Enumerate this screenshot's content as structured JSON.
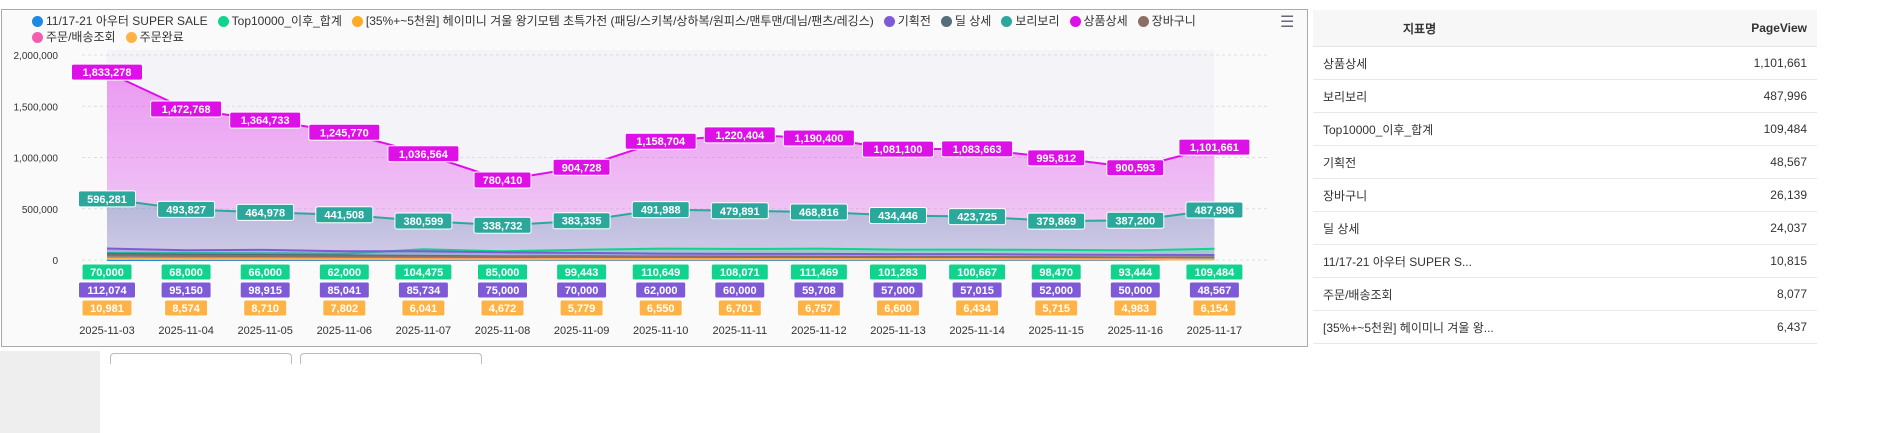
{
  "menu_icon": "hamburger-icon",
  "table": {
    "headers": [
      "지표명",
      "PageView"
    ],
    "rows": [
      [
        "상품상세",
        "1,101,661"
      ],
      [
        "보리보리",
        "487,996"
      ],
      [
        "Top10000_이후_합계",
        "109,484"
      ],
      [
        "기획전",
        "48,567"
      ],
      [
        "장바구니",
        "26,139"
      ],
      [
        "딜 상세",
        "24,037"
      ],
      [
        "11/17-21 아우터 SUPER S...",
        "10,815"
      ],
      [
        "주문/배송조회",
        "8,077"
      ],
      [
        "[35%+~5천원] 헤이미니 겨울 왕...",
        "6,437"
      ],
      [
        "주문완료",
        "6,154"
      ]
    ]
  },
  "chart_data": {
    "type": "area",
    "x": [
      "2025-11-03",
      "2025-11-04",
      "2025-11-05",
      "2025-11-06",
      "2025-11-07",
      "2025-11-08",
      "2025-11-09",
      "2025-11-10",
      "2025-11-11",
      "2025-11-12",
      "2025-11-13",
      "2025-11-14",
      "2025-11-15",
      "2025-11-16",
      "2025-11-17"
    ],
    "yticks": [
      "0",
      "500,000",
      "1,000,000",
      "1,500,000",
      "2,000,000"
    ],
    "ylim": [
      0,
      2000000
    ],
    "series": [
      {
        "name": "11/17-21 아우터 SUPER SALE",
        "color": "#1e88e5",
        "labels": false,
        "values": [
          0,
          0,
          0,
          0,
          0,
          0,
          0,
          0,
          0,
          0,
          0,
          0,
          0,
          0,
          10815
        ]
      },
      {
        "name": "Top10000_이후_합계",
        "color": "#12d38e",
        "labels": true,
        "values": [
          70000,
          68000,
          66000,
          62000,
          104475,
          85000,
          99443,
          110649,
          108071,
          111469,
          101283,
          100667,
          98470,
          93444,
          109484
        ]
      },
      {
        "name": "[35%+~5천원] 헤이미니 겨울 왕기모템 초특가전 (패딩/스키복/상하복/원피스/맨투맨/데님/팬츠/레깅스)",
        "color": "#ffab26",
        "labels": false,
        "values": [
          8000,
          7800,
          7600,
          7200,
          7000,
          6500,
          6800,
          7000,
          7100,
          7000,
          6900,
          6800,
          6600,
          6300,
          6437
        ]
      },
      {
        "name": "기획전",
        "color": "#7e5ad6",
        "labels": true,
        "values": [
          112074,
          95150,
          98915,
          85041,
          85734,
          75000,
          70000,
          62000,
          60000,
          59708,
          57000,
          57015,
          52000,
          50000,
          48567
        ]
      },
      {
        "name": "딜 상세",
        "color": "#546e7a",
        "labels": false,
        "values": [
          60000,
          52000,
          50000,
          45000,
          40000,
          35000,
          36000,
          34000,
          33000,
          32000,
          30000,
          29000,
          27000,
          25000,
          24037
        ]
      },
      {
        "name": "보리보리",
        "color": "#2ba89c",
        "labels": true,
        "values": [
          596281,
          493827,
          464978,
          441508,
          380599,
          338732,
          383335,
          491988,
          479891,
          468816,
          434446,
          423725,
          379869,
          387200,
          487996
        ]
      },
      {
        "name": "상품상세",
        "color": "#dd10e8",
        "labels": true,
        "area": true,
        "values": [
          1833278,
          1472768,
          1364733,
          1245770,
          1036564,
          780410,
          904728,
          1158704,
          1220404,
          1190400,
          1081100,
          1083663,
          995812,
          900593,
          1101661
        ]
      },
      {
        "name": "장바구니",
        "color": "#8d6e63",
        "labels": false,
        "values": [
          45187,
          40000,
          39000,
          35000,
          33000,
          30000,
          31000,
          30000,
          29500,
          29000,
          28000,
          28000,
          27000,
          25000,
          26139
        ]
      },
      {
        "name": "주문/배송조회",
        "color": "#f25eb0",
        "labels": false,
        "values": [
          14000,
          12000,
          11500,
          11000,
          10000,
          9000,
          9500,
          9200,
          9000,
          8800,
          8600,
          8500,
          8200,
          7900,
          8077
        ]
      },
      {
        "name": "주문완료",
        "color": "#ffb347",
        "labels": true,
        "values": [
          10981,
          8574,
          8710,
          7802,
          6041,
          4672,
          5779,
          6550,
          6701,
          6757,
          6600,
          6434,
          5715,
          4983,
          6154
        ]
      }
    ]
  }
}
